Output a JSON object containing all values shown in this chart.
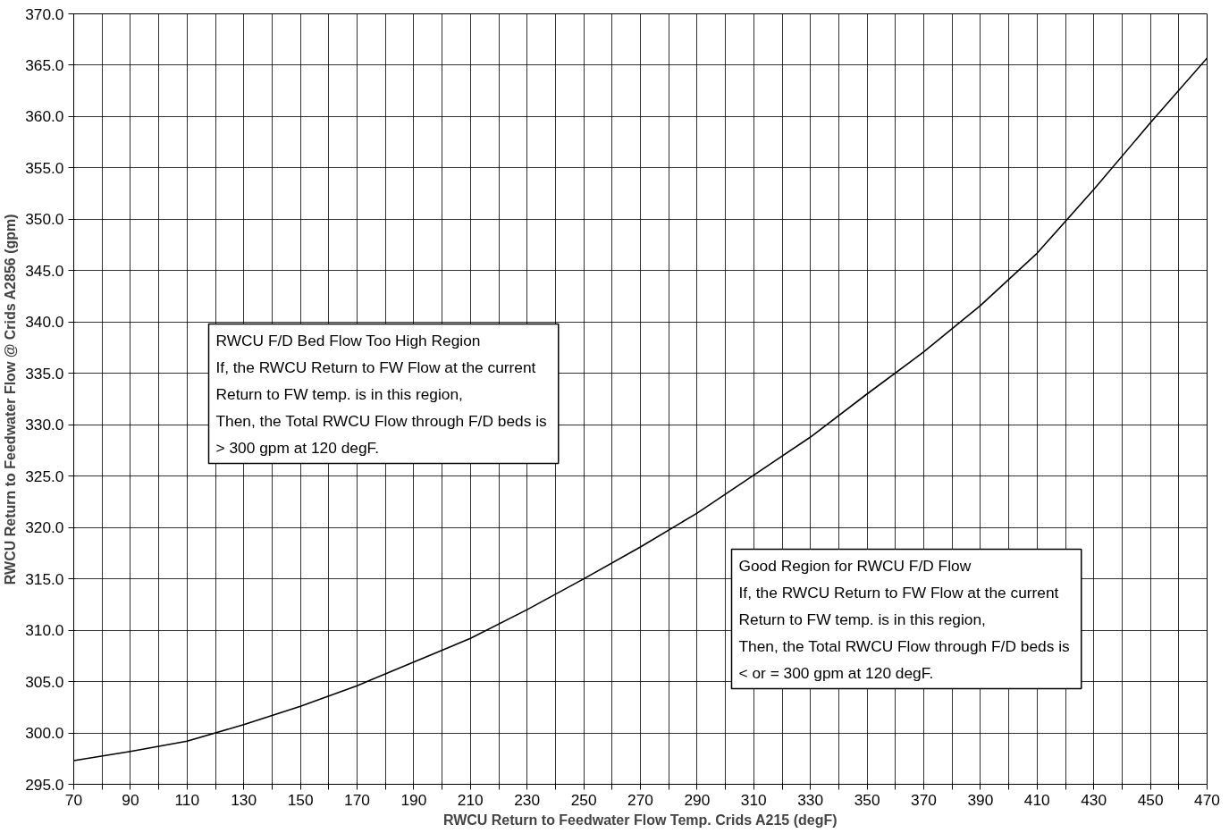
{
  "chart_data": {
    "type": "line",
    "xlabel": "RWCU Return to Feedwater Flow Temp. Crids A215 (degF)",
    "ylabel": "RWCU Return to Feedwater Flow @ Crids A2856 (gpm)",
    "x": [
      70,
      90,
      110,
      130,
      150,
      170,
      190,
      210,
      230,
      250,
      270,
      290,
      310,
      330,
      350,
      370,
      390,
      410,
      430,
      450,
      470
    ],
    "series": [
      {
        "color": "#000000",
        "values": [
          297.3,
          298.2,
          299.2,
          300.8,
          302.6,
          304.6,
          306.9,
          309.2,
          312.0,
          315.0,
          318.1,
          321.4,
          325.1,
          328.8,
          333.0,
          337.1,
          341.6,
          346.7,
          352.9,
          359.4,
          365.7
        ]
      }
    ],
    "xlim": [
      70,
      470
    ],
    "ylim": [
      295,
      370
    ],
    "xticks": [
      70,
      {
        "value": 80,
        "label": null
      },
      90,
      {
        "value": 100,
        "label": null
      },
      110,
      {
        "value": 120,
        "label": null
      },
      130,
      {
        "value": 140,
        "label": null
      },
      150,
      {
        "value": 160,
        "label": null
      },
      170,
      {
        "value": 180,
        "label": null
      },
      190,
      {
        "value": 200,
        "label": null
      },
      210,
      {
        "value": 220,
        "label": null
      },
      230,
      {
        "value": 240,
        "label": null
      },
      250,
      {
        "value": 260,
        "label": null
      },
      270,
      {
        "value": 280,
        "label": null
      },
      290,
      {
        "value": 300,
        "label": null
      },
      310,
      {
        "value": 320,
        "label": null
      },
      330,
      {
        "value": 340,
        "label": null
      },
      350,
      {
        "value": 360,
        "label": null
      },
      370,
      {
        "value": 380,
        "label": null
      },
      390,
      {
        "value": 400,
        "label": null
      },
      410,
      {
        "value": 420,
        "label": null
      },
      430,
      {
        "value": 440,
        "label": null
      },
      450,
      {
        "value": 460,
        "label": null
      },
      470
    ],
    "yticks": [
      {
        "value": 295,
        "label": "295.0"
      },
      {
        "value": 300,
        "label": "300.0"
      },
      {
        "value": 305,
        "label": "305.0"
      },
      {
        "value": 310,
        "label": "310.0"
      },
      {
        "value": 315,
        "label": "315.0"
      },
      {
        "value": 320,
        "label": "320.0"
      },
      {
        "value": 325,
        "label": "325.0"
      },
      {
        "value": 330,
        "label": "330.0"
      },
      {
        "value": 335,
        "label": "335.0"
      },
      {
        "value": 340,
        "label": "340.0"
      },
      {
        "value": 345,
        "label": "345.0"
      },
      {
        "value": 350,
        "label": "350.0"
      },
      {
        "value": 355,
        "label": "355.0"
      },
      {
        "value": 360,
        "label": "360.0"
      },
      {
        "value": 365,
        "label": "365.0"
      },
      {
        "value": 370,
        "label": "370.0"
      }
    ],
    "grid": true,
    "marker": "none",
    "line_style": "solid",
    "annotations": [
      "RWCU F/D Bed Flow Too High Region\nIf, the RWCU Return to FW Flow at the current\nReturn to FW temp. is in this region,\nThen,  the Total RWCU Flow through F/D beds is\n> 300 gpm at 120 degF.",
      "Good Region for RWCU F/D Flow\nIf, the RWCU Return to FW Flow at the current\nReturn to FW temp. is in this region,\nThen,  the Total RWCU Flow through F/D beds is\n< or = 300 gpm at 120 degF."
    ]
  }
}
